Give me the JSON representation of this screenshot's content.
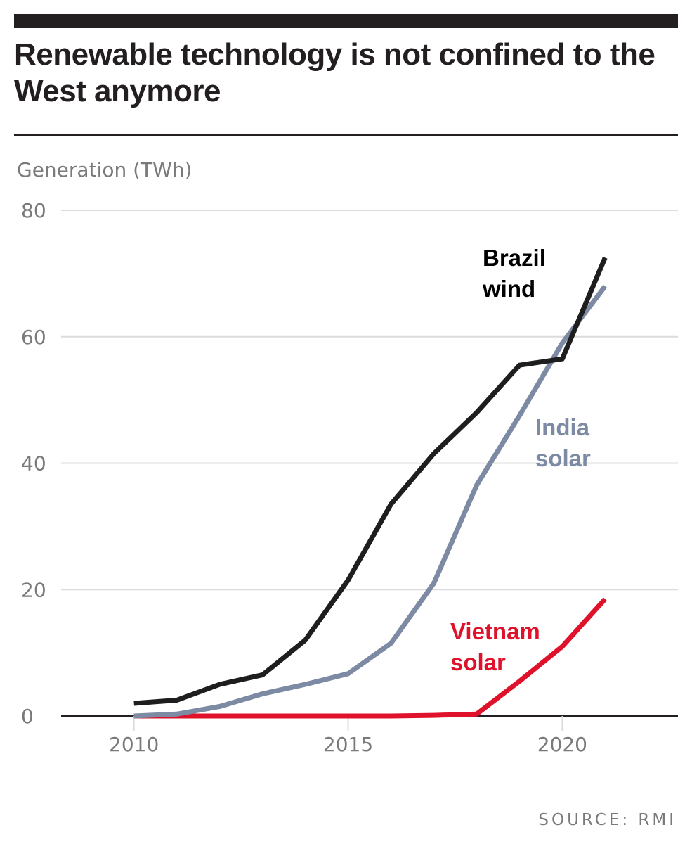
{
  "header": {
    "title": "Renewable technology is not confined to the West anymore"
  },
  "footer": {
    "source": "SOURCE: RMI"
  },
  "colors": {
    "text": "#231f20",
    "gray_text": "#7a7a7a",
    "grid": "#dcdcdc",
    "baseline": "#231f20",
    "brazil_wind": "#1e1e1e",
    "india_solar": "#7d8aa3",
    "vietnam_solar": "#e0122b"
  },
  "chart_data": {
    "type": "line",
    "title": "Renewable technology is not confined to the West anymore",
    "ylabel": "Generation (TWh)",
    "xlabel": "",
    "xlim": [
      2008.3,
      2022.7
    ],
    "ylim": [
      0,
      80
    ],
    "x_ticks": [
      2010,
      2015,
      2020
    ],
    "y_ticks": [
      0,
      20,
      40,
      60,
      80
    ],
    "grid": true,
    "legend": "direct labels",
    "series": [
      {
        "name": "Brazil wind",
        "label_lines": [
          "Brazil",
          "wind"
        ],
        "color": "#1e1e1e",
        "x": [
          2010,
          2011,
          2012,
          2013,
          2014,
          2015,
          2016,
          2017,
          2018,
          2019,
          2020,
          2021
        ],
        "y": [
          2.0,
          2.5,
          5.0,
          6.5,
          12.0,
          21.5,
          33.5,
          41.5,
          48.0,
          55.5,
          56.5,
          72.5
        ]
      },
      {
        "name": "India solar",
        "label_lines": [
          "India",
          "solar"
        ],
        "color": "#7d8aa3",
        "x": [
          2010,
          2011,
          2012,
          2013,
          2014,
          2015,
          2016,
          2017,
          2018,
          2019,
          2020,
          2021
        ],
        "y": [
          0.0,
          0.3,
          1.5,
          3.5,
          5.0,
          6.7,
          11.5,
          21.0,
          36.5,
          47.5,
          59.0,
          68.0
        ]
      },
      {
        "name": "Vietnam solar",
        "label_lines": [
          "Vietnam",
          "solar"
        ],
        "color": "#e0122b",
        "x": [
          2010,
          2011,
          2012,
          2013,
          2014,
          2015,
          2016,
          2017,
          2018,
          2019,
          2020,
          2021
        ],
        "y": [
          0,
          0,
          0,
          0,
          0,
          0,
          0,
          0.1,
          0.3,
          5.5,
          11.0,
          18.5
        ]
      }
    ]
  }
}
